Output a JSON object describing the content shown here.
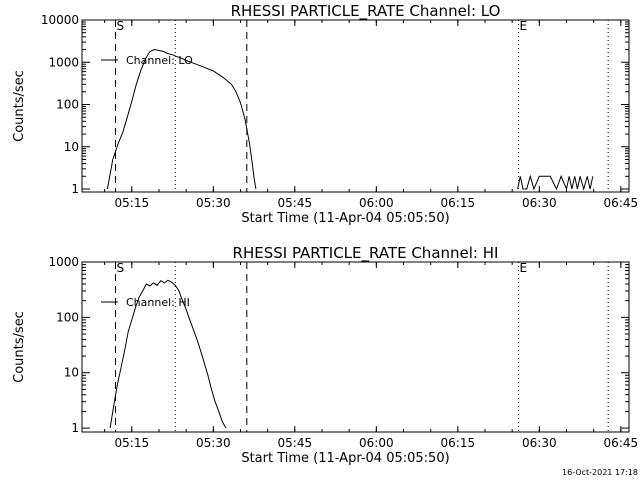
{
  "timestamp": "16-Oct-2021 17:18",
  "chart_data": [
    {
      "type": "line",
      "title": "RHESSI PARTICLE_RATE Channel: LO",
      "xlabel": "Start Time (11-Apr-04 05:05:50)",
      "ylabel": "Counts/sec",
      "yscale": "log",
      "ylim": [
        0.85,
        10000
      ],
      "xlim": [
        "05:05:50",
        "06:46:30"
      ],
      "x_ticks": [
        "05:15",
        "05:30",
        "05:45",
        "06:00",
        "06:15",
        "06:30",
        "06:45"
      ],
      "y_ticks": [
        "1",
        "10",
        "100",
        "1000",
        "10000"
      ],
      "legend": "Channel: LO",
      "legend_position": "top-left",
      "markers": [
        {
          "label": "S",
          "time": "05:12:00",
          "style": "dashed"
        },
        {
          "label": "",
          "time": "05:23:00",
          "style": "dotted"
        },
        {
          "label": "",
          "time": "05:36:10",
          "style": "dashed"
        },
        {
          "label": "E",
          "time": "06:26:10",
          "style": "dotted"
        },
        {
          "label": "",
          "time": "06:42:40",
          "style": "dotted"
        }
      ],
      "series": [
        {
          "x": [
            "05:10:30",
            "05:11:30",
            "05:12:30",
            "05:13:20",
            "05:14:10",
            "05:15:00",
            "05:15:50",
            "05:16:40",
            "05:17:30",
            "05:18:20",
            "05:19:10",
            "05:20:00",
            "05:20:50",
            "05:21:40",
            "05:22:30",
            "05:23:20",
            "05:24:10",
            "05:25:00",
            "05:26:40",
            "05:28:20",
            "05:30:00",
            "05:31:40",
            "05:33:20",
            "05:34:10",
            "05:35:00",
            "05:35:50",
            "05:36:40",
            "05:37:10",
            "05:37:30",
            "05:37:50"
          ],
          "y": [
            1,
            5,
            12,
            22,
            50,
            120,
            300,
            650,
            1200,
            1800,
            2000,
            1900,
            1800,
            1600,
            1500,
            1350,
            1250,
            1100,
            920,
            760,
            620,
            450,
            300,
            200,
            110,
            45,
            12,
            4,
            1.8,
            1
          ]
        },
        {
          "x": [
            "06:26:00",
            "06:26:30",
            "06:27:00",
            "06:27:40",
            "06:28:20",
            "06:29:00",
            "06:30:00",
            "06:31:00",
            "06:32:00",
            "06:33:10",
            "06:34:00",
            "06:35:00",
            "06:35:30",
            "06:36:00",
            "06:36:30",
            "06:37:00",
            "06:37:30",
            "06:38:10",
            "06:38:50",
            "06:39:20",
            "06:39:50"
          ],
          "y": [
            1,
            2,
            1,
            1,
            2,
            1,
            2,
            2,
            2,
            1,
            2,
            1,
            2,
            1,
            2,
            1,
            2,
            1,
            2,
            1,
            2
          ]
        }
      ]
    },
    {
      "type": "line",
      "title": "RHESSI PARTICLE_RATE Channel: HI",
      "xlabel": "Start Time (11-Apr-04 05:05:50)",
      "ylabel": "Counts/sec",
      "yscale": "log",
      "ylim": [
        0.85,
        1000
      ],
      "xlim": [
        "05:05:50",
        "06:46:30"
      ],
      "x_ticks": [
        "05:15",
        "05:30",
        "05:45",
        "06:00",
        "06:15",
        "06:30",
        "06:45"
      ],
      "y_ticks": [
        "1",
        "10",
        "100",
        "1000"
      ],
      "legend": "Channel: HI",
      "legend_position": "top-left",
      "markers": [
        {
          "label": "S",
          "time": "05:12:00",
          "style": "dashed"
        },
        {
          "label": "",
          "time": "05:23:00",
          "style": "dotted"
        },
        {
          "label": "",
          "time": "05:36:10",
          "style": "dashed"
        },
        {
          "label": "E",
          "time": "06:26:10",
          "style": "dotted"
        },
        {
          "label": "",
          "time": "06:42:40",
          "style": "dotted"
        }
      ],
      "series": [
        {
          "x": [
            "05:11:00",
            "05:11:40",
            "05:12:20",
            "05:13:00",
            "05:13:40",
            "05:14:20",
            "05:15:00",
            "05:15:40",
            "05:16:20",
            "05:17:00",
            "05:17:40",
            "05:18:20",
            "05:19:00",
            "05:19:40",
            "05:20:20",
            "05:21:00",
            "05:21:40",
            "05:22:20",
            "05:23:00",
            "05:23:40",
            "05:24:20",
            "05:25:00",
            "05:25:40",
            "05:26:20",
            "05:27:00",
            "05:27:40",
            "05:28:20",
            "05:29:00",
            "05:29:40",
            "05:30:20",
            "05:31:00",
            "05:31:40",
            "05:32:20"
          ],
          "y": [
            1,
            2.5,
            6,
            12,
            25,
            55,
            90,
            150,
            230,
            300,
            400,
            370,
            420,
            380,
            460,
            420,
            470,
            430,
            380,
            300,
            200,
            140,
            90,
            60,
            40,
            25,
            15,
            9,
            5,
            3,
            2,
            1.3,
            1
          ]
        }
      ]
    }
  ]
}
